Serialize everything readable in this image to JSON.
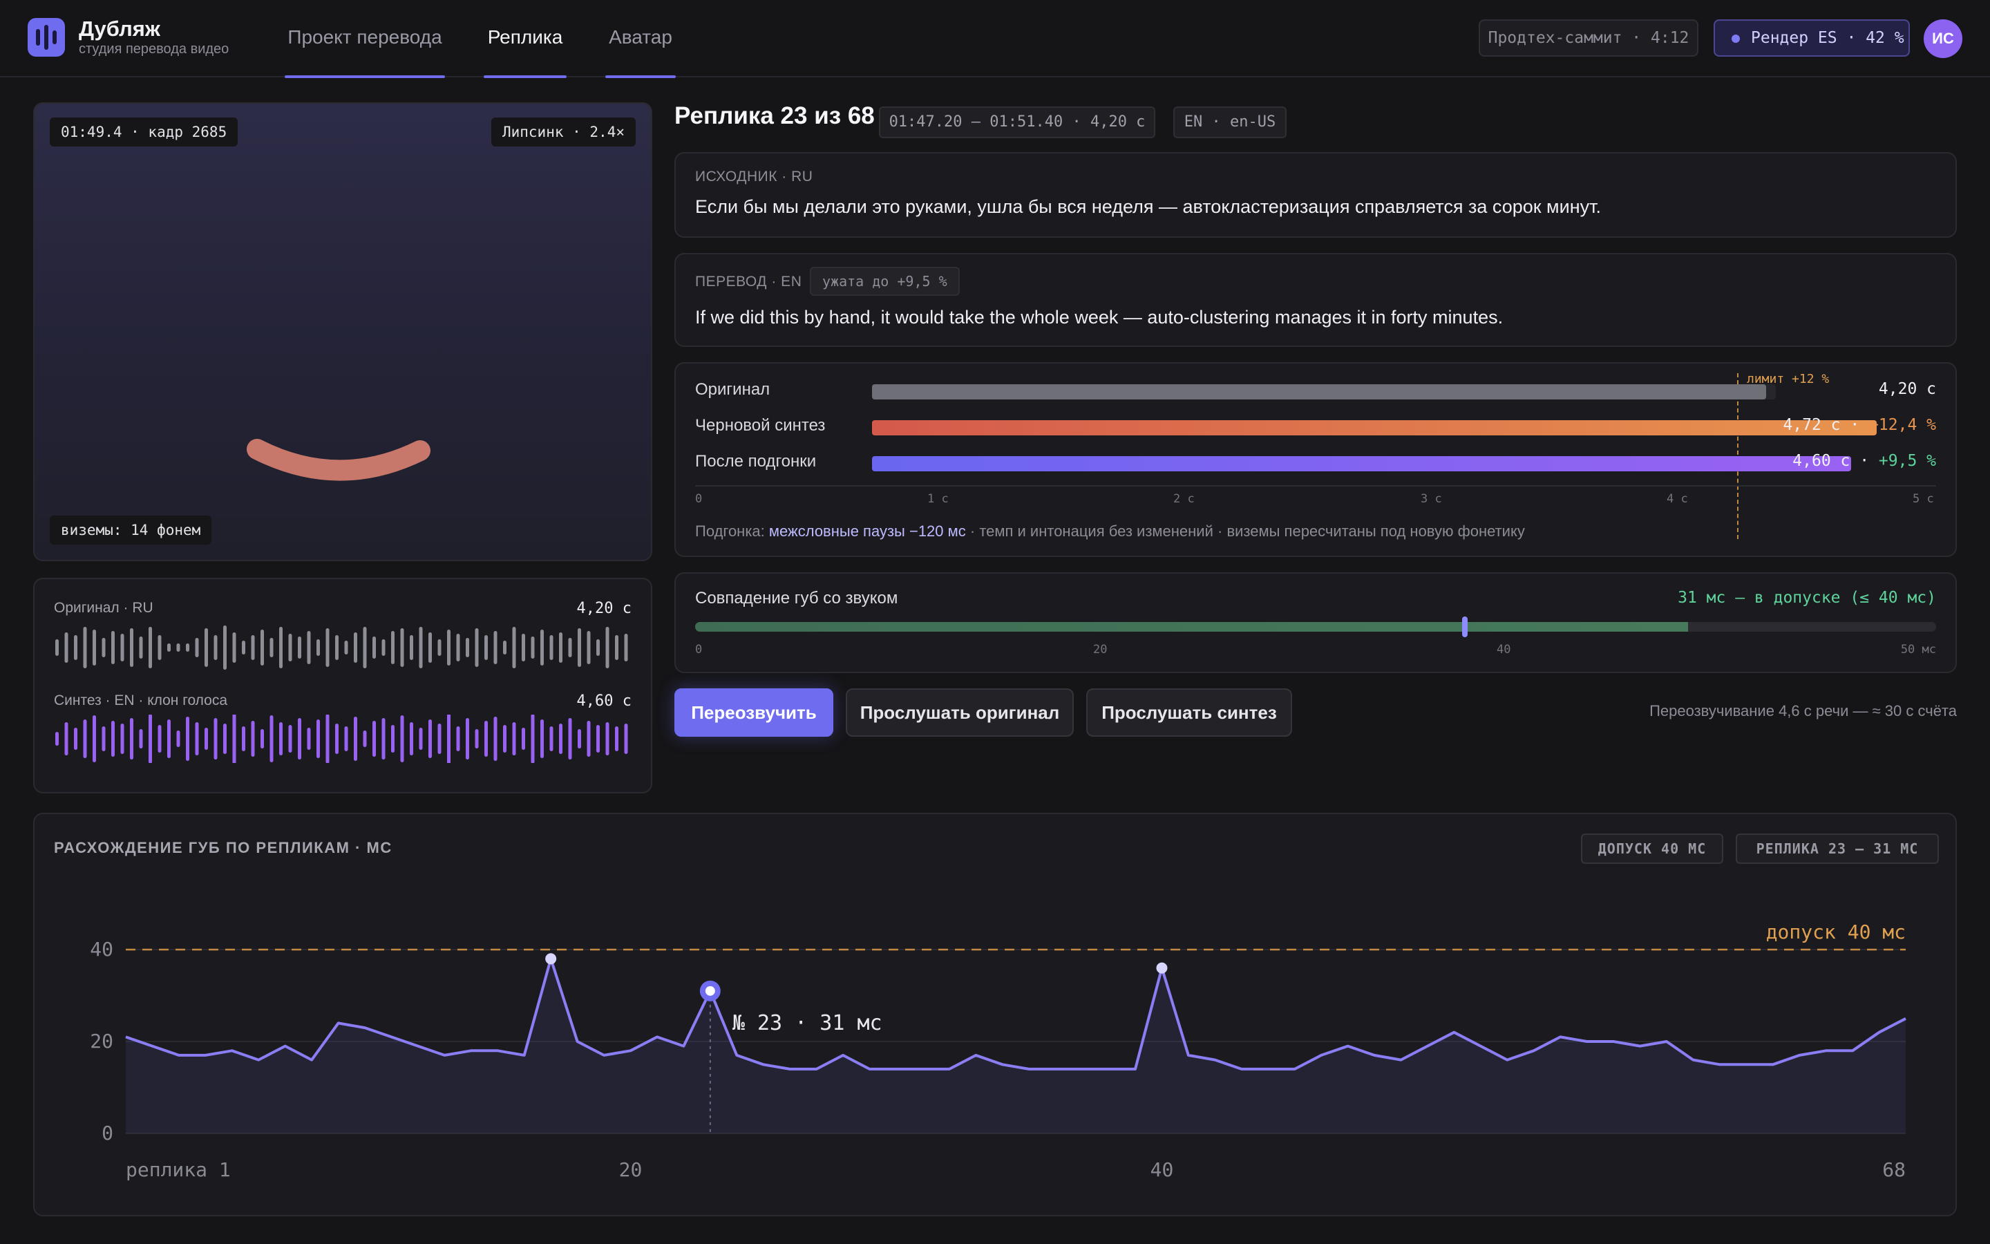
{
  "app": {
    "title": "Дубляж",
    "subtitle": "студия перевода видео",
    "logo_icon": "audio-bars-icon"
  },
  "nav": {
    "tabs": [
      {
        "label": "Проект перевода"
      },
      {
        "label": "Реплика",
        "active": true
      },
      {
        "label": "Аватар"
      }
    ]
  },
  "header": {
    "session": "Продтех-саммит · 4:12",
    "render_status": "Рендер ES · 42 %",
    "render_progress": 0.42,
    "user_initials": "ИС"
  },
  "preview": {
    "timecode": "01:49.4 · кадр 2685",
    "lipsync": "Липсинк · 2.4×",
    "visemes": "виземы: 14 фонем"
  },
  "waveforms": [
    {
      "label": "Оригинал · RU",
      "duration": "4,20 с",
      "color": "#8e8e97"
    },
    {
      "label": "Синтез · EN · клон голоса",
      "duration": "4,60 с",
      "color": "#9a62f2"
    }
  ],
  "segment": {
    "title": "Реплика 23 из 68",
    "timecode": "01:47.20 – 01:51.40 · 4,20 с",
    "language": "EN · en-US",
    "source_label": "ИСХОДНИК · RU",
    "source_text": "Если бы мы делали это руками, ушла бы вся неделя — автокластеризация справляется за сорок минут.",
    "target_label": "ПЕРЕВОД · EN",
    "target_badge": "ужата до +9,5 %",
    "target_text": "If we did this by hand, it would take the whole week — auto-clustering manages it in forty minutes."
  },
  "timing": {
    "limit_label": "лимит +12 %",
    "limit_seconds": 4.704,
    "scale_max_seconds": 5,
    "rows": [
      {
        "label": "Оригинал",
        "seconds": 4.2,
        "value": "4,20 с",
        "delta": "",
        "delta_color": "",
        "colors": [
          "#6f6f78",
          "#6f6f78"
        ]
      },
      {
        "label": "Черновой синтез",
        "seconds": 4.72,
        "value": "4,72 с · ",
        "delta": "+12,4 %",
        "delta_color": "#e8944e",
        "colors": [
          "#d45a4c",
          "#e8944e"
        ]
      },
      {
        "label": "После подгонки",
        "seconds": 4.6,
        "value": "4,60 с · ",
        "delta": "+9,5 %",
        "delta_color": "#5ed39b",
        "colors": [
          "#6a66f0",
          "#9a62f2"
        ]
      }
    ],
    "ticks": [
      "0",
      "1 с",
      "2 с",
      "3 с",
      "4 с",
      "5 с"
    ],
    "note_prefix": "Подгонка: ",
    "note_highlight": "межсловные паузы −120 мс",
    "note_rest": " · темп и интонация без изменений · виземы пересчитаны под новую фонетику"
  },
  "sync": {
    "label": "Совпадение губ со звуком",
    "value_text": "31 мс — в допуске (≤ 40 мс)",
    "value_ms": 31,
    "tolerance_ms": 40,
    "max_ms": 50,
    "ticks": [
      "0",
      "20",
      "40",
      "50 мс"
    ]
  },
  "actions": {
    "redub": "Переозвучить",
    "play_original": "Прослушать оригинал",
    "play_synth": "Прослушать синтез",
    "cost_note": "Переозвучивание 4,6 с речи — ≈ 30 с счёта"
  },
  "divergence": {
    "title": "РАСХОЖДЕНИЕ ГУБ ПО РЕПЛИКАМ · МС",
    "chip_tolerance": "ДОПУСК 40 МС",
    "chip_current": "РЕПЛИКА 23 — 31 МС"
  },
  "chart_data": {
    "type": "area",
    "title": "РАСХОЖДЕНИЕ ГУБ ПО РЕПЛИКАМ · МС",
    "x_range": [
      1,
      68
    ],
    "ylim": [
      0,
      40
    ],
    "y_ticks": [
      "0",
      "20",
      "40"
    ],
    "x_tick_labels": [
      {
        "x": 1,
        "label": "реплика 1"
      },
      {
        "x": 20,
        "label": "20"
      },
      {
        "x": 40,
        "label": "40"
      },
      {
        "x": 68,
        "label": "68"
      }
    ],
    "threshold": {
      "value": 40,
      "label": "допуск 40 мс",
      "color": "#c58a42"
    },
    "highlight": {
      "x": 23,
      "label": "№ 23 · 31 мс"
    },
    "series": [
      {
        "color": "#8b7ef5",
        "values": [
          21,
          19,
          17,
          17,
          18,
          16,
          19,
          16,
          24,
          23,
          21,
          19,
          17,
          18,
          18,
          17,
          38,
          20,
          17,
          18,
          21,
          19,
          31,
          17,
          15,
          14,
          14,
          17,
          14,
          14,
          14,
          14,
          17,
          15,
          14,
          14,
          14,
          14,
          14,
          36,
          17,
          16,
          14,
          14,
          14,
          17,
          19,
          17,
          16,
          19,
          22,
          19,
          16,
          18,
          21,
          20,
          20,
          19,
          20,
          16,
          15,
          15,
          15,
          17,
          18,
          18,
          22,
          25
        ],
        "marker_indices": [
          16,
          39
        ]
      }
    ]
  }
}
